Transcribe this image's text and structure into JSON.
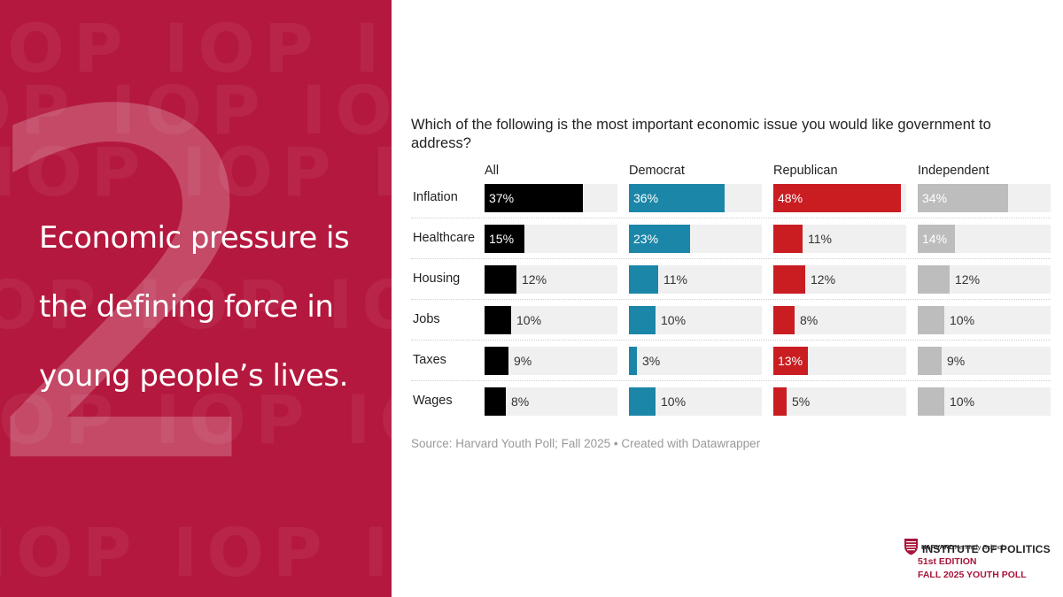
{
  "left_panel": {
    "watermark": "IOP IOP IOP",
    "big_numeral": "2",
    "headline_lines": [
      "Economic pressure is",
      "the defining force in",
      "young people’s lives."
    ],
    "background_color": "#b4183e"
  },
  "chart_data": {
    "type": "bar",
    "title": "Which of the following is the most important economic issue you would like government to address?",
    "xlabel": "",
    "ylabel": "",
    "xlim": [
      0,
      50
    ],
    "categories": [
      "Inflation",
      "Healthcare",
      "Housing",
      "Jobs",
      "Taxes",
      "Wages"
    ],
    "series": [
      {
        "name": "All",
        "color": "#000000",
        "values": [
          37,
          15,
          12,
          10,
          9,
          8
        ],
        "labels": [
          "37%",
          "15%",
          "12%",
          "10%",
          "9%",
          "8%"
        ]
      },
      {
        "name": "Democrat",
        "color": "#1b86a8",
        "values": [
          36,
          23,
          11,
          10,
          3,
          10
        ],
        "labels": [
          "36%",
          "23%",
          "11%",
          "10%",
          "3%",
          "10%"
        ]
      },
      {
        "name": "Republican",
        "color": "#c91d22",
        "values": [
          48,
          11,
          12,
          8,
          13,
          5
        ],
        "labels": [
          "48%",
          "11%",
          "12%",
          "8%",
          "13%",
          "5%"
        ]
      },
      {
        "name": "Independent",
        "color": "#bdbdbd",
        "values": [
          34,
          14,
          12,
          10,
          9,
          10
        ],
        "labels": [
          "34%",
          "14%",
          "12%",
          "10%",
          "9%",
          "10%"
        ]
      }
    ],
    "source": "Source: Harvard Youth Poll; Fall 2025 • Created with Datawrapper"
  },
  "logo": {
    "harvard": "HARVARD",
    "kennedy": "Kennedy School",
    "iop": "INSTITUTE OF POLITICS",
    "edition": "51st EDITION",
    "poll": "FALL 2025 YOUTH POLL"
  }
}
